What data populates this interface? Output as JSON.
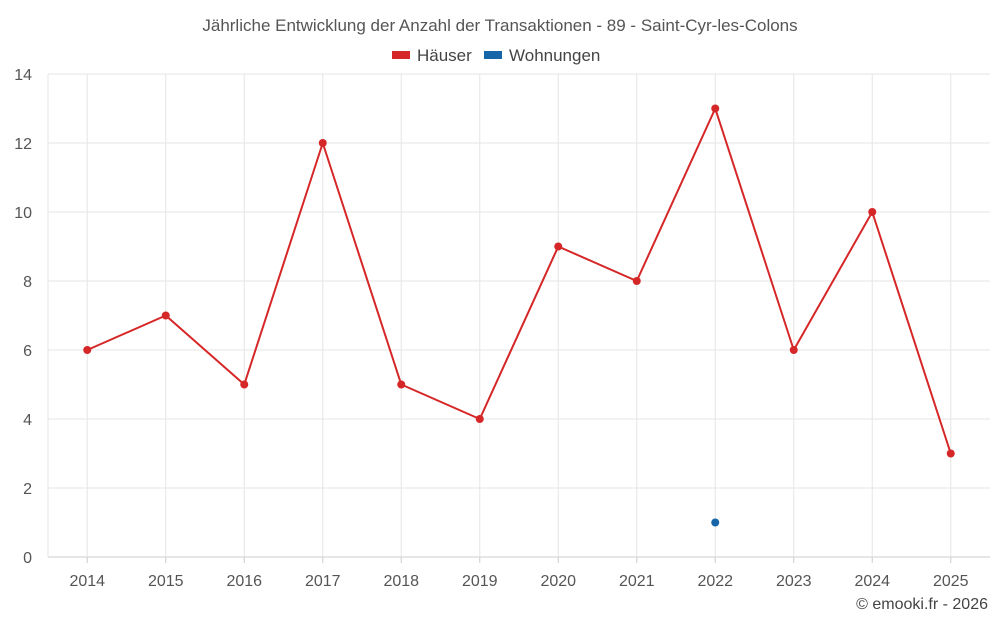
{
  "chart_data": {
    "type": "line",
    "title": "Jährliche Entwicklung der Anzahl der Transaktionen - 89 - Saint-Cyr-les-Colons",
    "categories": [
      "2014",
      "2015",
      "2016",
      "2017",
      "2018",
      "2019",
      "2020",
      "2021",
      "2022",
      "2023",
      "2024",
      "2025"
    ],
    "series": [
      {
        "name": "Häuser",
        "color": "#d62728",
        "values": [
          6,
          7,
          5,
          12,
          5,
          4,
          9,
          8,
          13,
          6,
          10,
          3
        ]
      },
      {
        "name": "Wohnungen",
        "color": "#1565a8",
        "values": [
          null,
          null,
          null,
          null,
          null,
          null,
          null,
          null,
          1,
          null,
          null,
          null
        ]
      }
    ],
    "ylim": [
      0,
      14
    ],
    "yticks": [
      0,
      2,
      4,
      6,
      8,
      10,
      12,
      14
    ],
    "xlabel": "",
    "ylabel": "",
    "grid": true,
    "legend_position": "top-center"
  },
  "credit": "© emooki.fr - 2026"
}
